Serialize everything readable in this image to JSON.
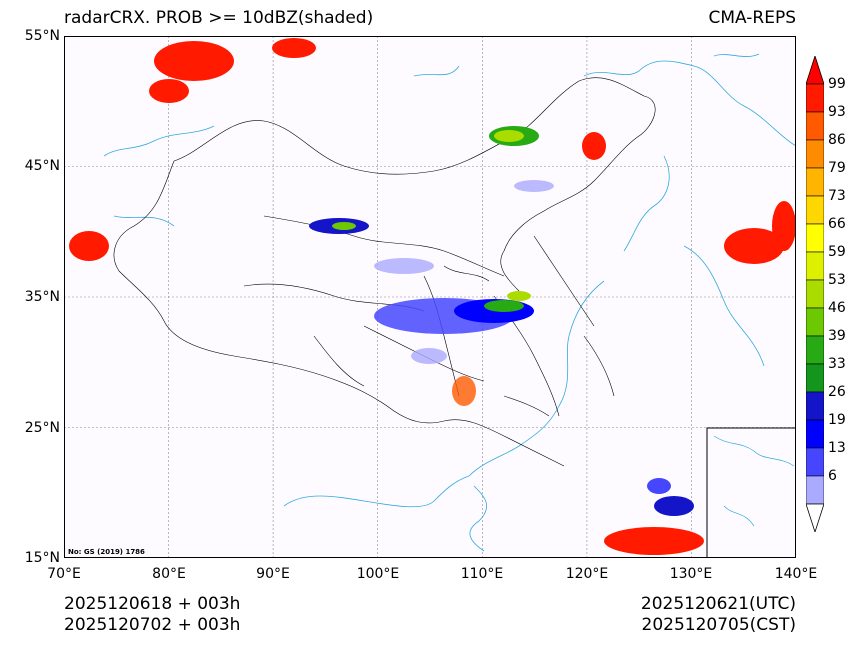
{
  "title": {
    "left": "radarCRX. PROB >= 10dBZ(shaded)",
    "right": "CMA-REPS"
  },
  "axes": {
    "lat_labels": [
      "55°N",
      "45°N",
      "35°N",
      "25°N",
      "15°N"
    ],
    "lon_labels": [
      "70°E",
      "80°E",
      "90°E",
      "100°E",
      "110°E",
      "120°E",
      "130°E",
      "140°E"
    ],
    "lat_range": [
      15,
      55
    ],
    "lon_range": [
      70,
      140
    ]
  },
  "footer": {
    "left_line1": "2025120618  +  003h",
    "left_line2": "2025120702  +  003h",
    "right_line1": "2025120621(UTC)",
    "right_line2": "2025120705(CST)"
  },
  "approval_no": "No: GS (2019) 1786",
  "colorbar": {
    "labels": [
      "99",
      "93",
      "86",
      "79",
      "73",
      "66",
      "59",
      "53",
      "46",
      "39",
      "33",
      "26",
      "19",
      "13",
      "6"
    ],
    "colors": [
      "#ff1a00",
      "#ff5a00",
      "#ff8c00",
      "#ffb400",
      "#ffd700",
      "#ffff00",
      "#dcf000",
      "#aadc00",
      "#6cc800",
      "#28aa14",
      "#14961e",
      "#1414c8",
      "#0000ff",
      "#4646ff",
      "#aaaaff"
    ],
    "extend_max_color": "#ff0000",
    "extend_min_color": "#ffffff"
  },
  "colors": {
    "border": "#000000",
    "coast": "#33aadd",
    "grid": "#888888"
  }
}
